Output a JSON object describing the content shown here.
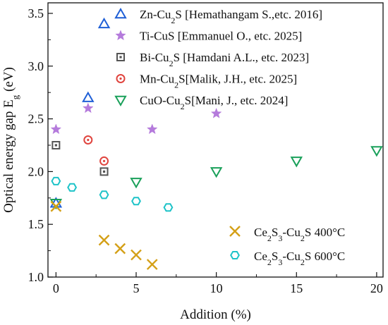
{
  "chart_data": {
    "type": "scatter",
    "xlabel": "Addition (%)",
    "ylabel": "Optical energy gap E",
    "ylabel_sub": "g",
    "ylabel_unit": " (eV)",
    "xlim": [
      -0.5,
      20.4
    ],
    "ylim": [
      1.0,
      3.6
    ],
    "xticks": [
      0,
      5,
      10,
      15,
      20
    ],
    "yticks": [
      1.0,
      1.5,
      2.0,
      2.5,
      3.0,
      3.5
    ],
    "xtick_labels": [
      "0",
      "5",
      "10",
      "15",
      "20"
    ],
    "ytick_labels": [
      "1.0",
      "1.5",
      "2.0",
      "2.5",
      "3.0",
      "3.5"
    ],
    "grid": false,
    "legend_placement": "top-left",
    "legend2_placement": "bottom-right",
    "series": [
      {
        "name_parts": [
          "Zn-Cu",
          "2",
          "S [Hemathangam S.,etc.  2016]"
        ],
        "marker": "triangle-up",
        "color": "#1f5fd6",
        "legend_group": 1,
        "points": [
          [
            0,
            1.7
          ],
          [
            2,
            2.7
          ],
          [
            3,
            3.4
          ]
        ]
      },
      {
        "name_parts": [
          "Ti-CuS [Emmanuel O., etc.  2025]"
        ],
        "marker": "star",
        "color": "#b57bdc",
        "legend_group": 1,
        "points": [
          [
            0,
            2.4
          ],
          [
            2,
            2.6
          ],
          [
            6,
            2.4
          ],
          [
            10,
            2.55
          ]
        ]
      },
      {
        "name_parts": [
          "Bi-Cu",
          "2",
          "S [Hamdani A.L., etc.  2023]"
        ],
        "marker": "square",
        "color": "#555555",
        "legend_group": 1,
        "points": [
          [
            0,
            2.25
          ],
          [
            3,
            2.0
          ]
        ]
      },
      {
        "name_parts": [
          "Mn-Cu",
          "2",
          "S[Malik, J.H., etc.  2025]"
        ],
        "marker": "circle",
        "color": "#e0443e",
        "legend_group": 1,
        "points": [
          [
            2,
            2.3
          ],
          [
            3,
            2.1
          ]
        ]
      },
      {
        "name_parts": [
          "CuO-Cu",
          "2",
          "S[Mani, J., etc.  2024]"
        ],
        "marker": "triangle-down",
        "color": "#1aa05a",
        "legend_group": 1,
        "points": [
          [
            0,
            1.7
          ],
          [
            5,
            1.9
          ],
          [
            10,
            2.0
          ],
          [
            15,
            2.1
          ],
          [
            20,
            2.2
          ]
        ]
      },
      {
        "name_parts": [
          "Ce",
          "2",
          "S",
          "3",
          "-Cu",
          "2",
          "S 400°C"
        ],
        "marker": "x",
        "color": "#d4a017",
        "legend_group": 2,
        "points": [
          [
            0,
            1.67
          ],
          [
            3,
            1.35
          ],
          [
            4,
            1.27
          ],
          [
            5,
            1.21
          ],
          [
            6,
            1.12
          ]
        ]
      },
      {
        "name_parts": [
          "Ce",
          "2",
          "S",
          "3",
          "-Cu",
          "2",
          "S 600°C"
        ],
        "marker": "hexagon",
        "color": "#1ec3c8",
        "legend_group": 2,
        "points": [
          [
            0,
            1.91
          ],
          [
            1,
            1.85
          ],
          [
            3,
            1.78
          ],
          [
            5,
            1.72
          ],
          [
            7,
            1.66
          ]
        ]
      }
    ]
  }
}
